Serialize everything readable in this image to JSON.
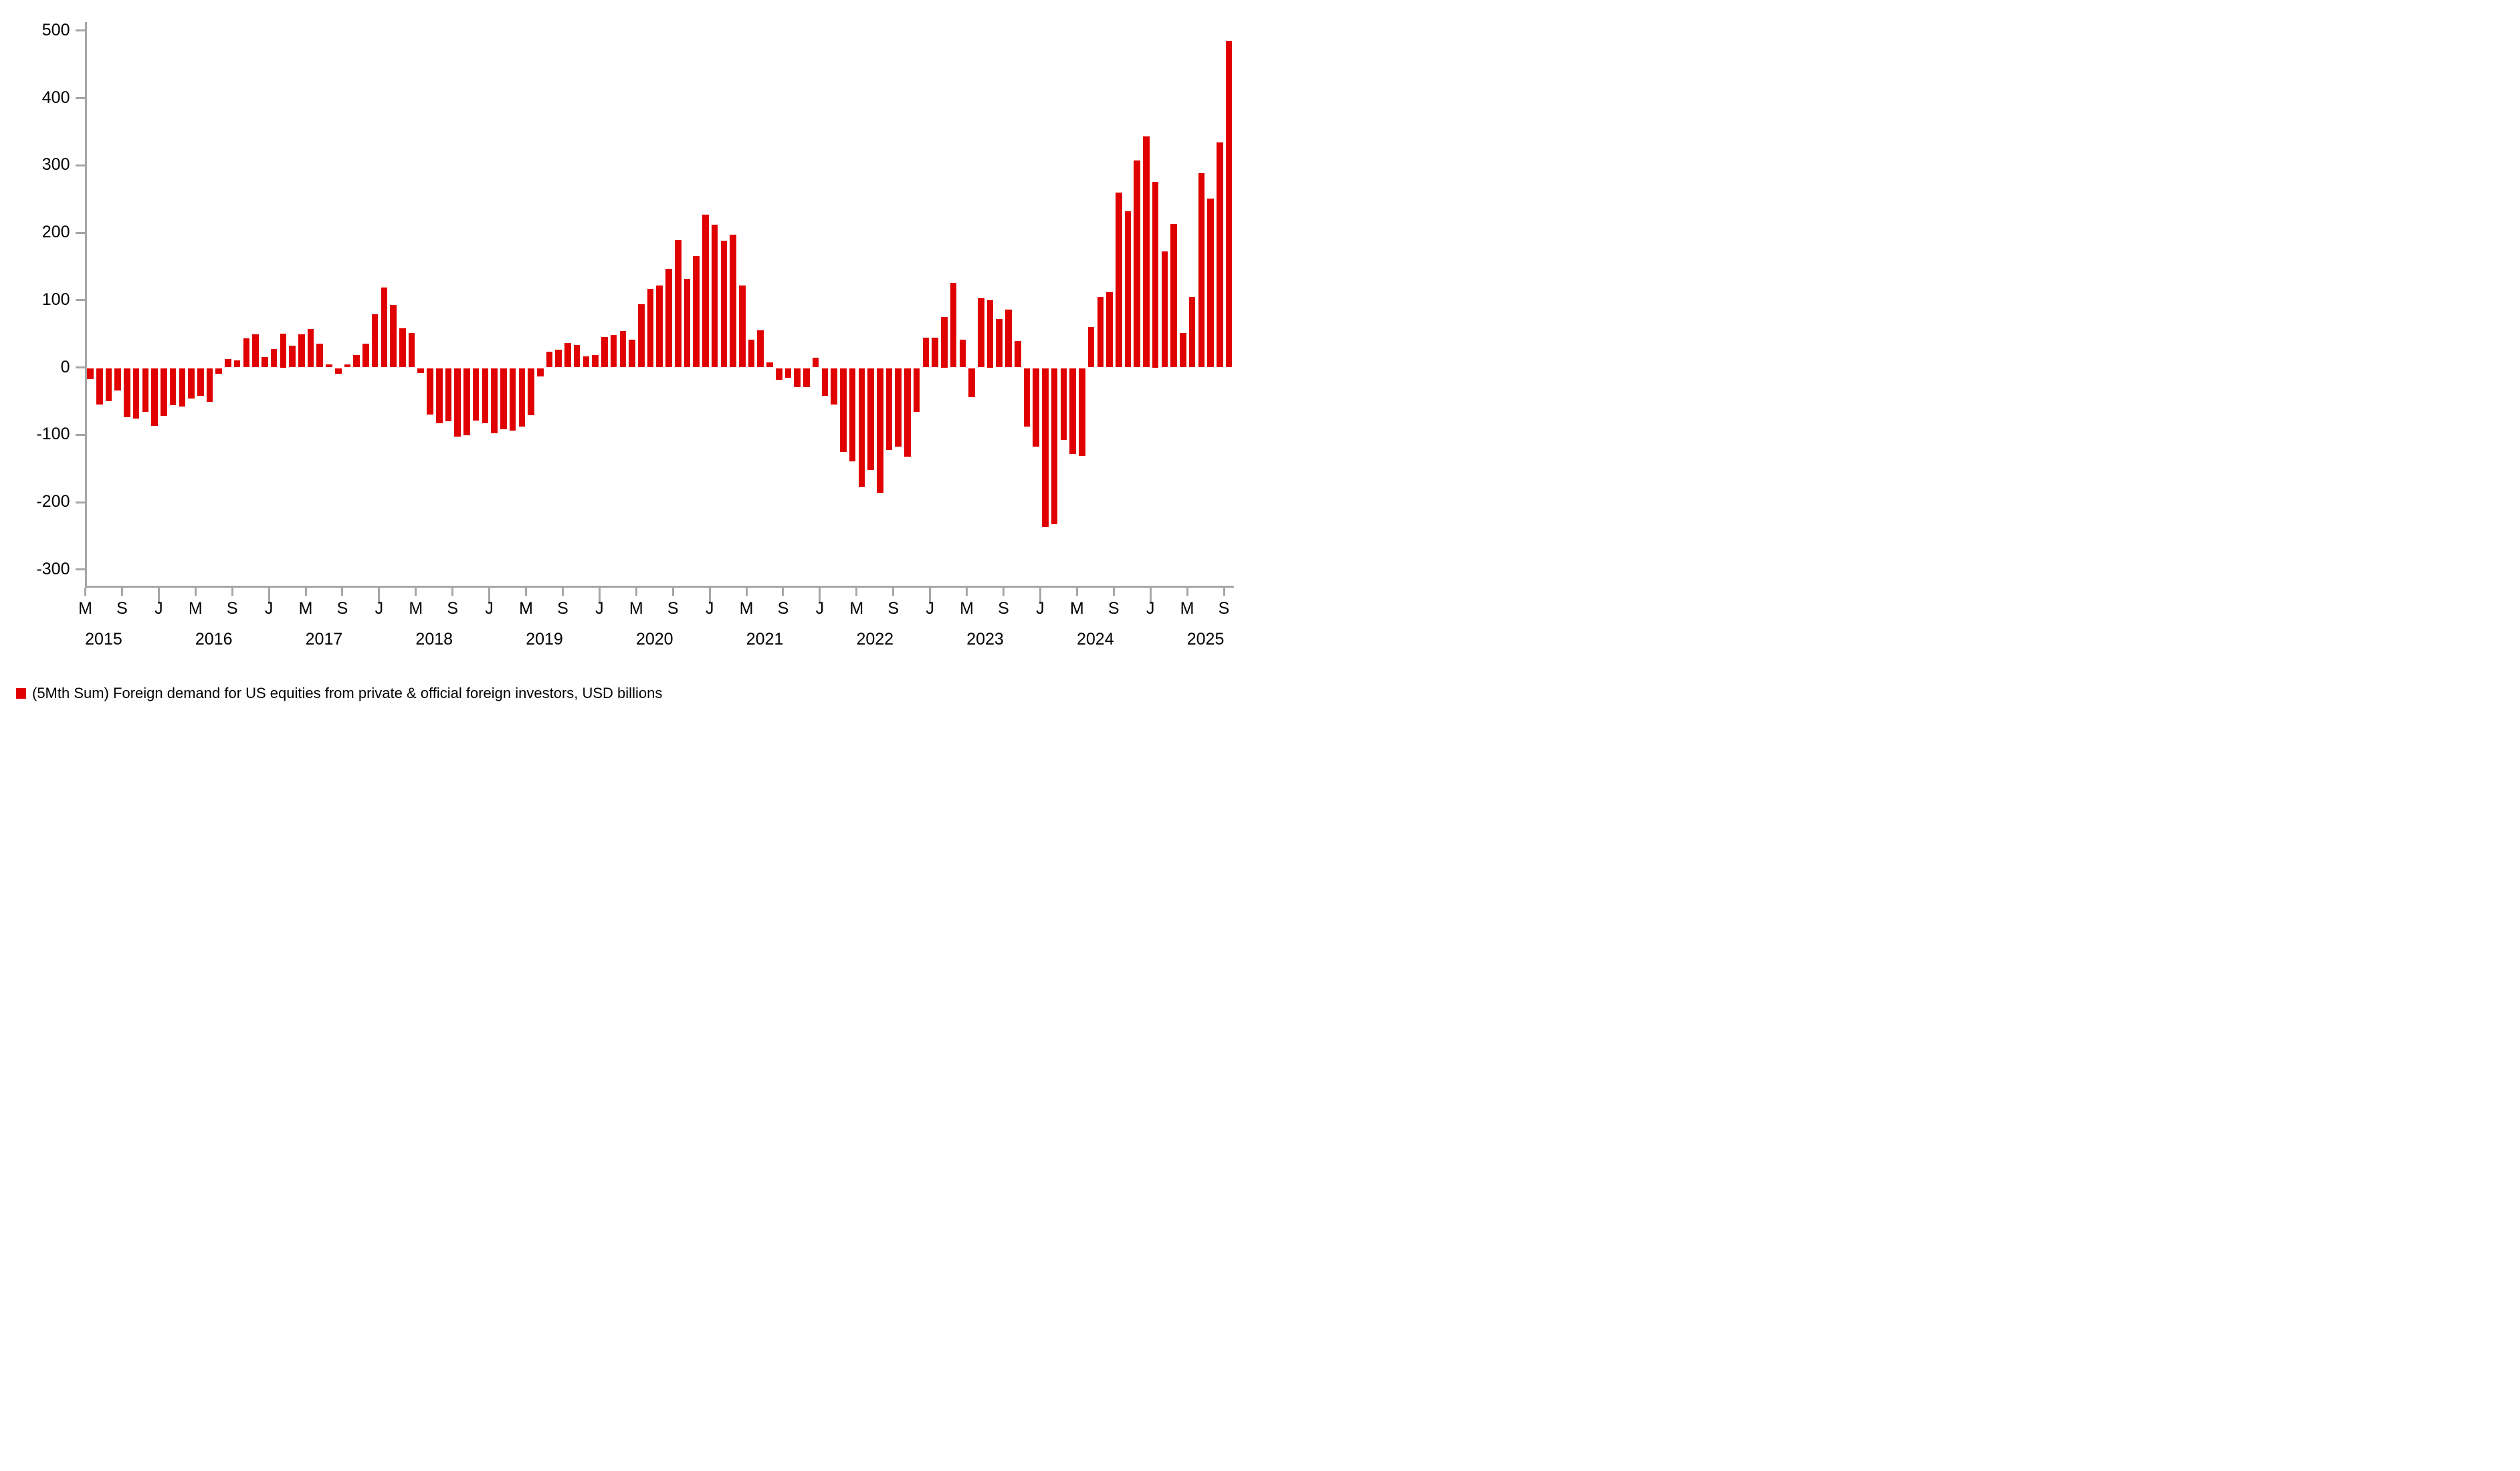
{
  "chart_data": {
    "type": "bar",
    "title": "",
    "legend_label": "(5Mth Sum) Foreign demand for US equities from private & official foreign investors, USD billions",
    "unit": "USD billions",
    "bar_color": "#e00000",
    "axis_color": "#a6a6a6",
    "grid": false,
    "legend_position": "bottom-left",
    "ylim": [
      -340,
      520
    ],
    "y_ticks": [
      500,
      400,
      300,
      200,
      100,
      0,
      -100,
      -200,
      -300
    ],
    "x_tick_month_cycle": [
      "M",
      "S",
      "J"
    ],
    "x_tick_interval_months": 4,
    "x_start_month": "May 2015",
    "x_end_month": "Sep 2025",
    "year_labels": [
      "2015",
      "2016",
      "2017",
      "2018",
      "2019",
      "2020",
      "2021",
      "2022",
      "2023",
      "2024",
      "2025"
    ],
    "series": [
      {
        "name": "(5Mth Sum) Foreign demand for US equities from private & official foreign investors, USD billions",
        "values_by_year": [
          {
            "year": "2015",
            "first_month": "May",
            "values": [
              -16,
              -54,
              -49,
              -33,
              -72,
              -74,
              -65,
              -85
            ]
          },
          {
            "year": "2016",
            "first_month": "Jan",
            "values": [
              -70,
              -55,
              -57,
              -45,
              -41,
              -50,
              -8,
              12,
              10,
              43,
              49,
              15
            ]
          },
          {
            "year": "2017",
            "first_month": "Jan",
            "values": [
              27,
              50,
              32,
              49,
              57,
              35,
              4,
              -8,
              4,
              18,
              35,
              79
            ]
          },
          {
            "year": "2018",
            "first_month": "Jan",
            "values": [
              119,
              93,
              58,
              51,
              -7,
              -68,
              -81,
              -78,
              -101,
              -99,
              -77,
              -81
            ]
          },
          {
            "year": "2019",
            "first_month": "Jan",
            "values": [
              -96,
              -90,
              -92,
              -86,
              -69,
              -12,
              23,
              26,
              36,
              33,
              16,
              18
            ]
          },
          {
            "year": "2020",
            "first_month": "Jan",
            "values": [
              45,
              48,
              54,
              41,
              94,
              117,
              122,
              146,
              189,
              132,
              165,
              227
            ]
          },
          {
            "year": "2021",
            "first_month": "Jan",
            "values": [
              212,
              188,
              197,
              122,
              41,
              55,
              7,
              -17,
              -14,
              -28,
              -28,
              14
            ]
          },
          {
            "year": "2022",
            "first_month": "Jan",
            "values": [
              -41,
              -54,
              -124,
              -138,
              -176,
              -151,
              -185,
              -121,
              -116,
              -131,
              -65,
              44
            ]
          },
          {
            "year": "2023",
            "first_month": "Jan",
            "values": [
              44,
              75,
              126,
              41,
              -43,
              103,
              100,
              72,
              86,
              39,
              -86,
              -116
            ]
          },
          {
            "year": "2024",
            "first_month": "Jan",
            "values": [
              -235,
              -231,
              -106,
              -127,
              -130,
              60,
              105,
              112,
              260,
              232,
              307,
              343
            ]
          },
          {
            "year": "2025",
            "first_month": "Jan",
            "values": [
              275,
              172,
              213,
              51,
              105,
              288,
              251,
              334,
              485
            ]
          }
        ]
      }
    ]
  }
}
